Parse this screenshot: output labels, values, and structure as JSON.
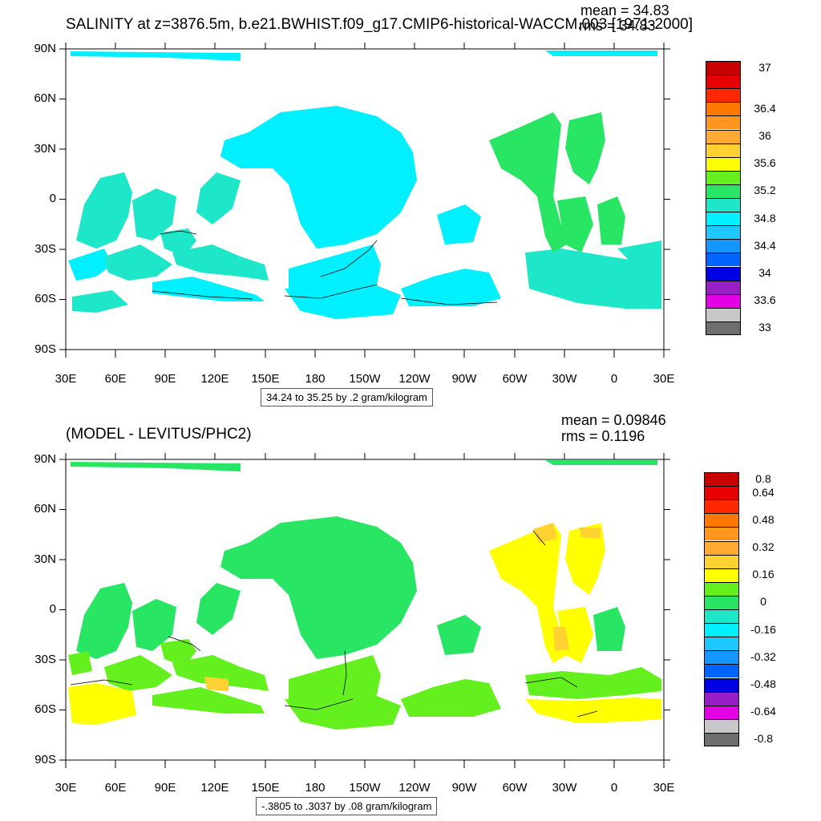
{
  "panels": [
    {
      "id": "top",
      "title": "SALINITY at z=3876.5m, b.e21.BWHIST.f09_g17.CMIP6-historical-WACCM.003 [1971-2000]",
      "stats": [
        "mean = 34.83",
        "rms = 34.83"
      ],
      "contour_info": "34.24 to 35.25 by .2 gram/kilogram",
      "lat_labels": [
        "90N",
        "60N",
        "30N",
        "0",
        "30S",
        "60S",
        "90S"
      ],
      "lon_labels": [
        "30E",
        "60E",
        "90E",
        "120E",
        "150E",
        "180",
        "150W",
        "120W",
        "90W",
        "60W",
        "30W",
        "0",
        "30E"
      ],
      "legend": {
        "colors": [
          "#6e6e6e",
          "#c8c8c8",
          "#e400e4",
          "#9a1ec8",
          "#0000e4",
          "#0064ff",
          "#1496ff",
          "#1ec8ff",
          "#00f0ff",
          "#1ee6c8",
          "#28e664",
          "#64f01e",
          "#ffff00",
          "#ffd232",
          "#ffaa32",
          "#ff961e",
          "#ff7800",
          "#ff2800",
          "#e60000",
          "#c80000"
        ],
        "labels": [
          "33",
          "",
          "33.6",
          "",
          "34",
          "",
          "34.4",
          "",
          "34.8",
          "",
          "35.2",
          "",
          "35.6",
          "",
          "36",
          "",
          "36.4",
          "",
          "",
          "37"
        ]
      }
    },
    {
      "id": "bottom",
      "title": "(MODEL - LEVITUS/PHC2)",
      "stats": [
        "mean = 0.09846",
        "rms = 0.1196"
      ],
      "contour_info": "-.3805 to .3037 by .08 gram/kilogram",
      "lat_labels": [
        "90N",
        "60N",
        "30N",
        "0",
        "30S",
        "60S",
        "90S"
      ],
      "lon_labels": [
        "30E",
        "60E",
        "90E",
        "120E",
        "150E",
        "180",
        "150W",
        "120W",
        "90W",
        "60W",
        "30W",
        "0",
        "30E"
      ],
      "legend": {
        "colors": [
          "#6e6e6e",
          "#c8c8c8",
          "#e400e4",
          "#9a1ec8",
          "#0000e4",
          "#0064ff",
          "#1496ff",
          "#1ec8ff",
          "#00f0ff",
          "#1ee6c8",
          "#28e664",
          "#64f01e",
          "#ffff00",
          "#ffd232",
          "#ffaa32",
          "#ff961e",
          "#ff7800",
          "#ff2800",
          "#e60000",
          "#c80000"
        ],
        "labels": [
          "-0.8",
          "",
          "-0.64",
          "",
          "-0.48",
          "",
          "-0.32",
          "",
          "-0.16",
          "",
          "0",
          "",
          "0.16",
          "",
          "0.32",
          "",
          "0.48",
          "",
          "0.64",
          "0.8"
        ]
      }
    }
  ]
}
